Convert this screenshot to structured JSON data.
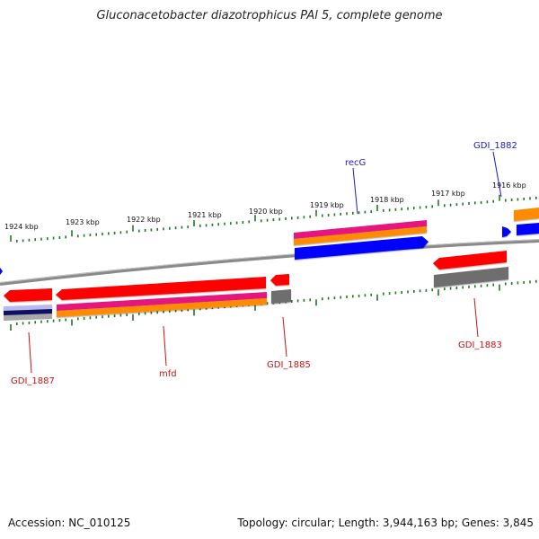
{
  "title": "Gluconacetobacter diazotrophicus PAl 5, complete genome",
  "footer": {
    "accession": "Accession: NC_010125",
    "summary": "Topology: circular; Length: 3,944,163 bp; Genes: 3,845"
  },
  "colors": {
    "backbone": "#808080",
    "tick": "#1f7a1f",
    "forward_label": "#1a1acc",
    "reverse_label": "#cc1111",
    "cds_reverse": "#ff0000",
    "cds_forward": "#0000ff",
    "pink": "#e6197f",
    "orange": "#ff8c00",
    "gray_feature": "#6e6e6e",
    "navy": "#101060",
    "lavender": "#b9b9ee"
  },
  "tick_labels": [
    "1924 kbp",
    "1923 kbp",
    "1922 kbp",
    "1921 kbp",
    "1920 kbp",
    "1919 kbp",
    "1918 kbp",
    "1917 kbp",
    "1916 kbp"
  ],
  "gene_labels": {
    "recG": "recG",
    "GDI_1882": "GDI_1882",
    "GDI_1883": "GDI_1883",
    "GDI_1885": "GDI_1885",
    "mfd": "mfd",
    "GDI_1887": "GDI_1887"
  }
}
